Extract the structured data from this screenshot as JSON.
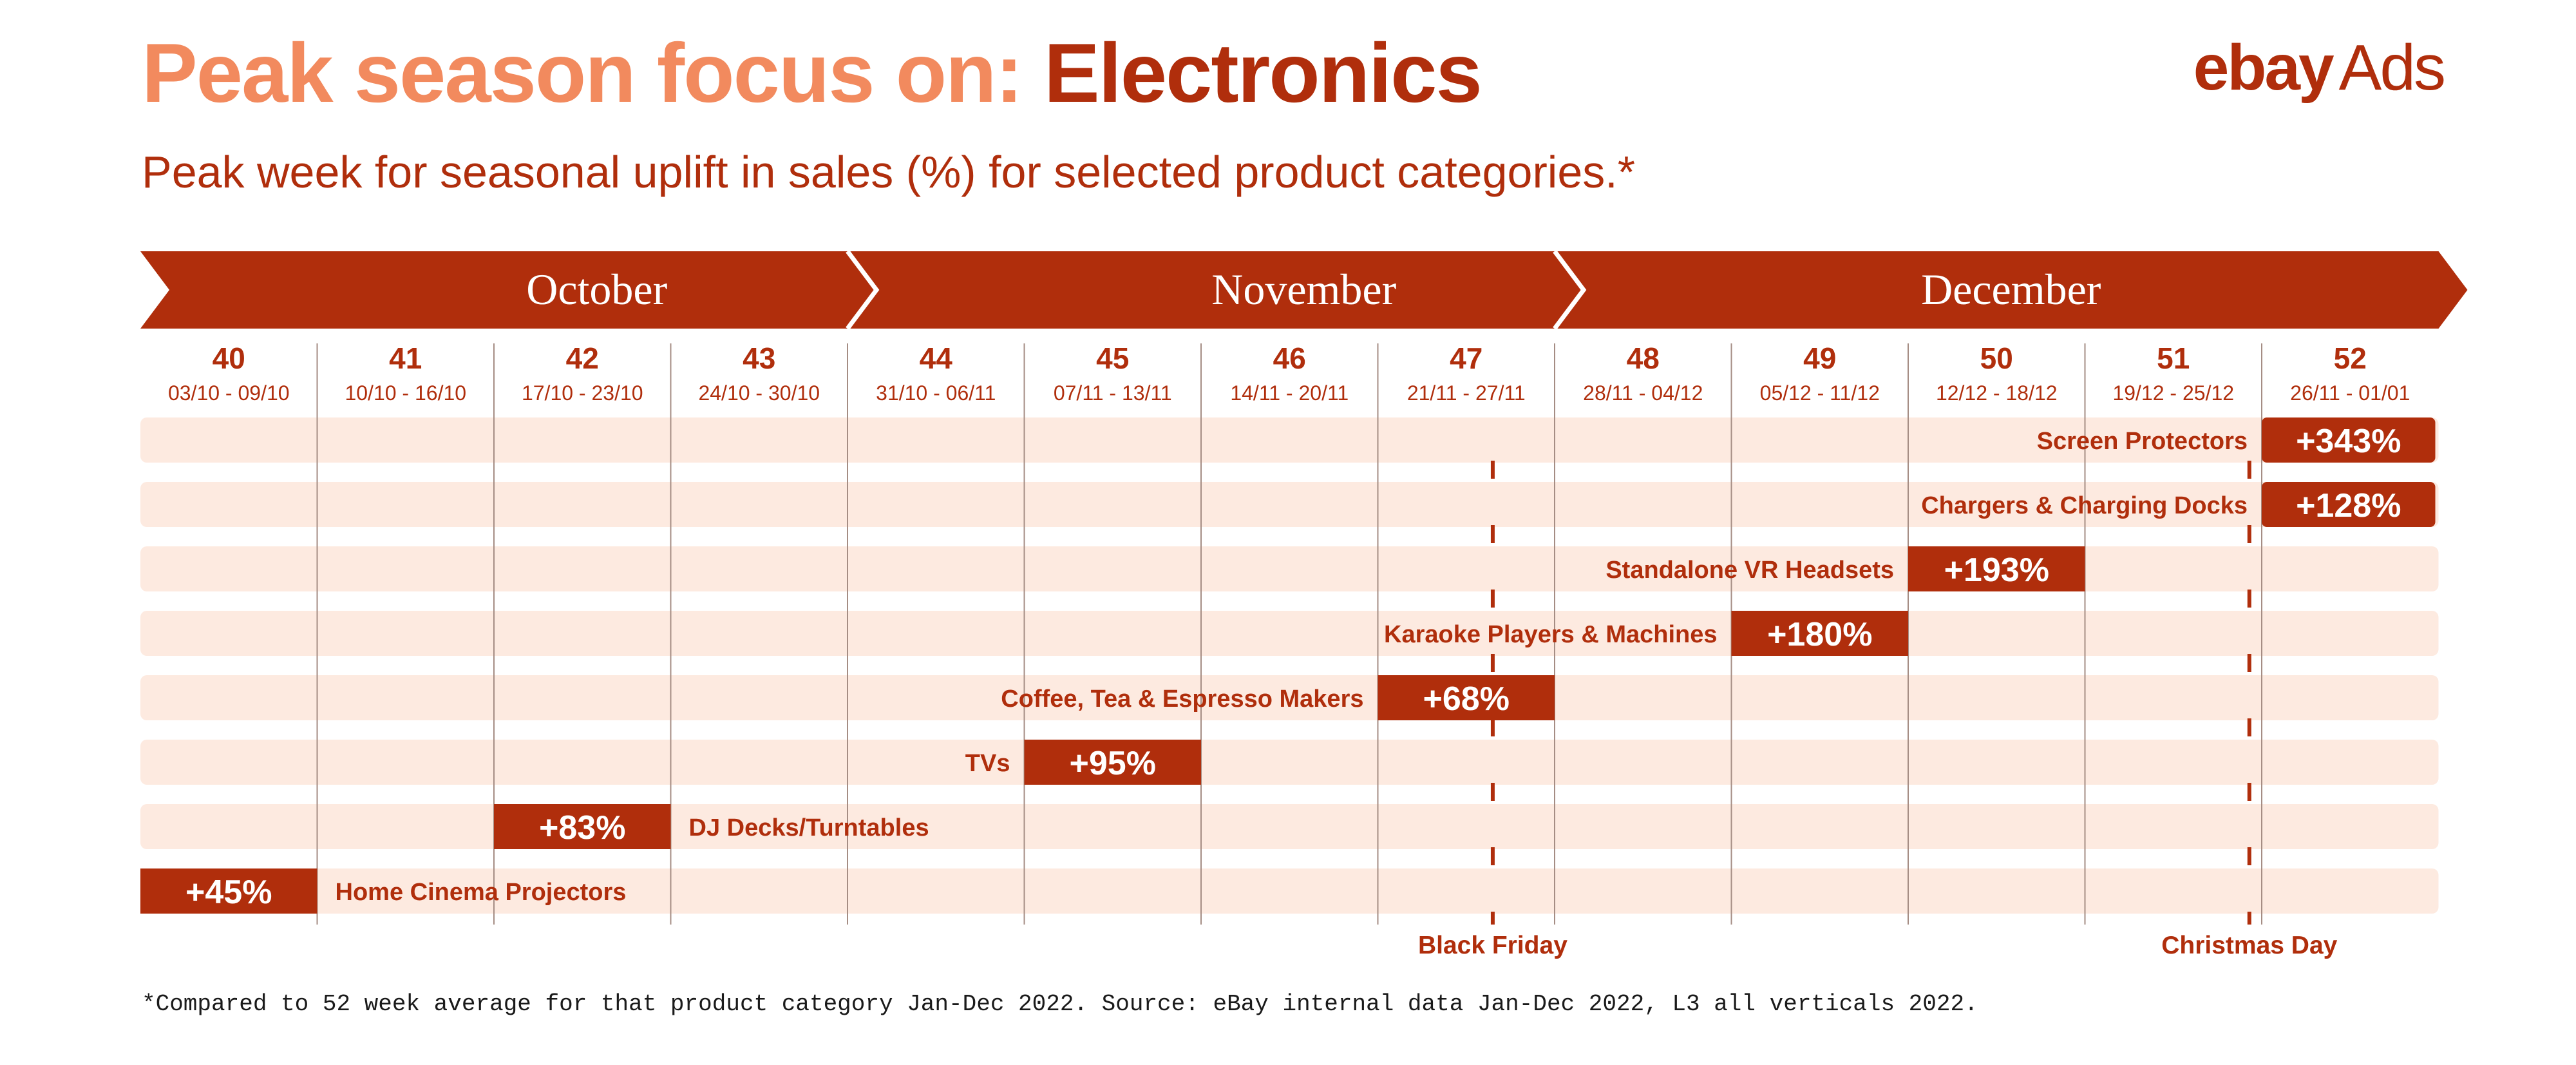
{
  "header": {
    "title_lead": "Peak season focus on:",
    "title_focus": "Electronics",
    "subtitle": "Peak week for seasonal uplift in sales (%) for selected product categories.*"
  },
  "logo": {
    "brand": "ebay",
    "product": "Ads"
  },
  "footnote": "*Compared to 52 week average for that product category Jan-Dec 2022. Source: eBay internal data Jan-Dec 2022, L3 all verticals 2022.",
  "colors": {
    "dark": "#b02e0c",
    "title_light": "#f28a5e",
    "track": "#fdeae0",
    "divider": "#a58d84",
    "label": "#b02e0c"
  },
  "chart_data": {
    "type": "bar",
    "title": "Peak week for seasonal uplift in sales (%) for selected product categories.*",
    "months": [
      {
        "name": "October",
        "weeks": [
          40,
          44
        ]
      },
      {
        "name": "November",
        "weeks": [
          44,
          48
        ]
      },
      {
        "name": "December",
        "weeks": [
          48,
          52
        ]
      }
    ],
    "weeks": [
      {
        "number": "40",
        "range": "03/10 - 09/10"
      },
      {
        "number": "41",
        "range": "10/10 - 16/10"
      },
      {
        "number": "42",
        "range": "17/10 - 23/10"
      },
      {
        "number": "43",
        "range": "24/10 - 30/10"
      },
      {
        "number": "44",
        "range": "31/10 - 06/11"
      },
      {
        "number": "45",
        "range": "07/11 - 13/11"
      },
      {
        "number": "46",
        "range": "14/11 - 20/11"
      },
      {
        "number": "47",
        "range": "21/11 - 27/11"
      },
      {
        "number": "48",
        "range": "28/11 - 04/12"
      },
      {
        "number": "49",
        "range": "05/12 - 11/12"
      },
      {
        "number": "50",
        "range": "12/12 - 18/12"
      },
      {
        "number": "51",
        "range": "19/12 - 25/12"
      },
      {
        "number": "52",
        "range": "26/11 - 01/01"
      }
    ],
    "categories": [
      {
        "name": "Screen Protectors",
        "peak_week": 52,
        "uplift_pct": 343,
        "label": "+343%",
        "name_side": "left"
      },
      {
        "name": "Chargers & Charging Docks",
        "peak_week": 52,
        "uplift_pct": 128,
        "label": "+128%",
        "name_side": "left"
      },
      {
        "name": "Standalone VR Headsets",
        "peak_week": 50,
        "uplift_pct": 193,
        "label": "+193%",
        "name_side": "left"
      },
      {
        "name": "Karaoke Players & Machines",
        "peak_week": 49,
        "uplift_pct": 180,
        "label": "+180%",
        "name_side": "left"
      },
      {
        "name": "Coffee, Tea & Espresso Makers",
        "peak_week": 47,
        "uplift_pct": 68,
        "label": "+68%",
        "name_side": "left"
      },
      {
        "name": "TVs",
        "peak_week": 45,
        "uplift_pct": 95,
        "label": "+95%",
        "name_side": "left"
      },
      {
        "name": "DJ Decks/Turntables",
        "peak_week": 42,
        "uplift_pct": 83,
        "label": "+83%",
        "name_side": "right"
      },
      {
        "name": "Home Cinema Projectors",
        "peak_week": 40,
        "uplift_pct": 45,
        "label": "+45%",
        "name_side": "right"
      }
    ],
    "events": [
      {
        "name": "Black Friday",
        "week": 47,
        "position_in_week": 0.65
      },
      {
        "name": "Christmas Day",
        "week": 51,
        "position_in_week": 0.93
      }
    ],
    "grid": true,
    "legend": false
  }
}
